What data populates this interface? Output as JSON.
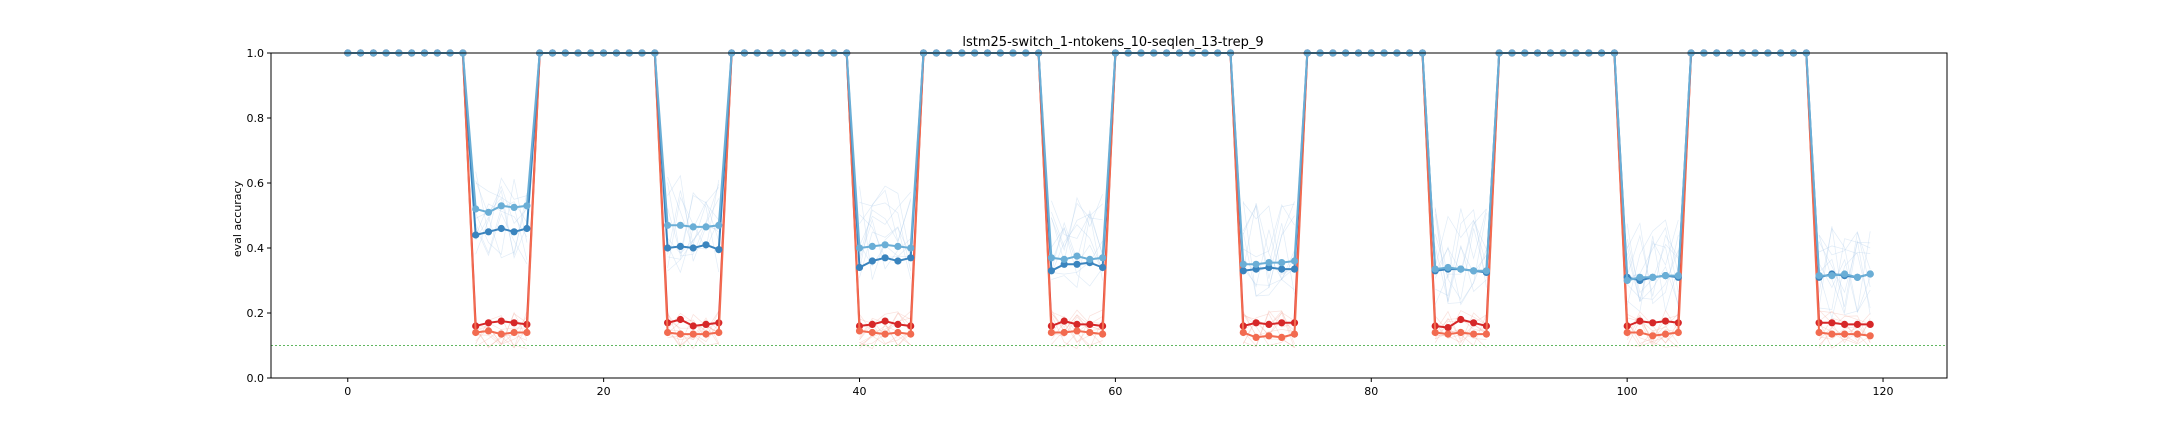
{
  "chart_data": {
    "type": "line",
    "title": "lstm25-switch_1-ntokens_10-seqlen_13-trep_9",
    "xlabel": "",
    "ylabel": "eval accuracy",
    "xlim": [
      -6,
      125
    ],
    "ylim": [
      0.0,
      1.0
    ],
    "xticks": [
      0,
      20,
      40,
      60,
      80,
      100,
      120
    ],
    "yticks": [
      0.0,
      0.2,
      0.4,
      0.6,
      0.8,
      1.0
    ],
    "xtick_labels": [
      "0",
      "20",
      "40",
      "60",
      "80",
      "100",
      "120"
    ],
    "ytick_labels": [
      "0.0",
      "0.2",
      "0.4",
      "0.6",
      "0.8",
      "1.0"
    ],
    "grid": false,
    "legend": "none",
    "x": [
      0,
      1,
      2,
      3,
      4,
      5,
      6,
      7,
      8,
      9,
      10,
      11,
      12,
      13,
      14,
      15,
      16,
      17,
      18,
      19,
      20,
      21,
      22,
      23,
      24,
      25,
      26,
      27,
      28,
      29,
      30,
      31,
      32,
      33,
      34,
      35,
      36,
      37,
      38,
      39,
      40,
      41,
      42,
      43,
      44,
      45,
      46,
      47,
      48,
      49,
      50,
      51,
      52,
      53,
      54,
      55,
      56,
      57,
      58,
      59,
      60,
      61,
      62,
      63,
      64,
      65,
      66,
      67,
      68,
      69,
      70,
      71,
      72,
      73,
      74,
      75,
      76,
      77,
      78,
      79,
      80,
      81,
      82,
      83,
      84,
      85,
      86,
      87,
      88,
      89,
      90,
      91,
      92,
      93,
      94,
      95,
      96,
      97,
      98,
      99,
      100,
      101,
      102,
      103,
      104,
      105,
      106,
      107,
      108,
      109,
      110,
      111,
      112,
      113,
      114,
      115,
      116,
      117,
      118,
      119
    ],
    "switch_windows": [
      [
        10,
        14
      ],
      [
        25,
        29
      ],
      [
        40,
        44
      ],
      [
        55,
        59
      ],
      [
        70,
        74
      ],
      [
        85,
        89
      ],
      [
        100,
        104
      ],
      [
        115,
        119
      ]
    ],
    "chance_level": 0.1,
    "series": [
      {
        "color": "#d62728",
        "high": [
          1.0,
          1.0
        ],
        "low": [
          [
            0.16,
            0.17,
            0.175,
            0.17,
            0.165
          ],
          [
            0.17,
            0.18,
            0.16,
            0.165,
            0.17
          ],
          [
            0.16,
            0.165,
            0.175,
            0.165,
            0.16
          ],
          [
            0.16,
            0.175,
            0.165,
            0.165,
            0.16
          ],
          [
            0.16,
            0.17,
            0.165,
            0.17,
            0.17
          ],
          [
            0.16,
            0.155,
            0.18,
            0.17,
            0.16
          ],
          [
            0.16,
            0.175,
            0.17,
            0.175,
            0.17
          ],
          [
            0.17,
            0.17,
            0.165,
            0.165,
            0.165
          ]
        ]
      },
      {
        "color": "#f26b50",
        "high": [
          1.0,
          1.0
        ],
        "low": [
          [
            0.14,
            0.145,
            0.135,
            0.14,
            0.14
          ],
          [
            0.14,
            0.135,
            0.135,
            0.135,
            0.14
          ],
          [
            0.145,
            0.14,
            0.135,
            0.14,
            0.135
          ],
          [
            0.14,
            0.14,
            0.145,
            0.14,
            0.135
          ],
          [
            0.14,
            0.125,
            0.13,
            0.125,
            0.135
          ],
          [
            0.14,
            0.135,
            0.14,
            0.135,
            0.135
          ],
          [
            0.14,
            0.14,
            0.13,
            0.135,
            0.14
          ],
          [
            0.14,
            0.135,
            0.135,
            0.135,
            0.13
          ]
        ]
      },
      {
        "color": "#3a84be",
        "high": [
          1.0,
          1.0
        ],
        "low": [
          [
            0.44,
            0.45,
            0.46,
            0.45,
            0.46
          ],
          [
            0.4,
            0.405,
            0.4,
            0.41,
            0.395
          ],
          [
            0.34,
            0.36,
            0.37,
            0.36,
            0.37
          ],
          [
            0.33,
            0.35,
            0.35,
            0.355,
            0.34
          ],
          [
            0.33,
            0.335,
            0.34,
            0.335,
            0.335
          ],
          [
            0.33,
            0.335,
            0.335,
            0.33,
            0.325
          ],
          [
            0.31,
            0.3,
            0.31,
            0.315,
            0.31
          ],
          [
            0.31,
            0.32,
            0.315,
            0.31,
            0.32
          ]
        ]
      },
      {
        "color": "#6aaed6",
        "high": [
          1.0,
          1.0
        ],
        "low": [
          [
            0.52,
            0.51,
            0.53,
            0.525,
            0.53
          ],
          [
            0.47,
            0.47,
            0.465,
            0.465,
            0.47
          ],
          [
            0.4,
            0.405,
            0.41,
            0.405,
            0.4
          ],
          [
            0.37,
            0.365,
            0.375,
            0.365,
            0.37
          ],
          [
            0.35,
            0.35,
            0.355,
            0.355,
            0.36
          ],
          [
            0.335,
            0.34,
            0.335,
            0.33,
            0.33
          ],
          [
            0.3,
            0.31,
            0.31,
            0.315,
            0.315
          ],
          [
            0.315,
            0.315,
            0.32,
            0.31,
            0.32
          ]
        ]
      }
    ]
  }
}
